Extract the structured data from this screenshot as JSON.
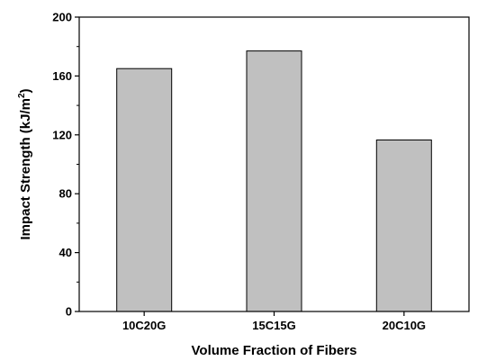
{
  "chart_data": {
    "type": "bar",
    "title": "",
    "xlabel": "Volume Fraction of Fibers",
    "ylabel": "Impact Strength (kJ/m",
    "ylabel_superscript": "2",
    "ylabel_close": ")",
    "categories": [
      "10C20G",
      "15C15G",
      "20C10G"
    ],
    "values": [
      165,
      177,
      116.5
    ],
    "ylim": [
      0,
      200
    ],
    "yticks": [
      0,
      40,
      80,
      120,
      160,
      200
    ],
    "grid": false,
    "legend": "none",
    "colors": {
      "bar_fill": "#c0c0c0",
      "bar_stroke": "#000000",
      "axis": "#000000"
    }
  }
}
